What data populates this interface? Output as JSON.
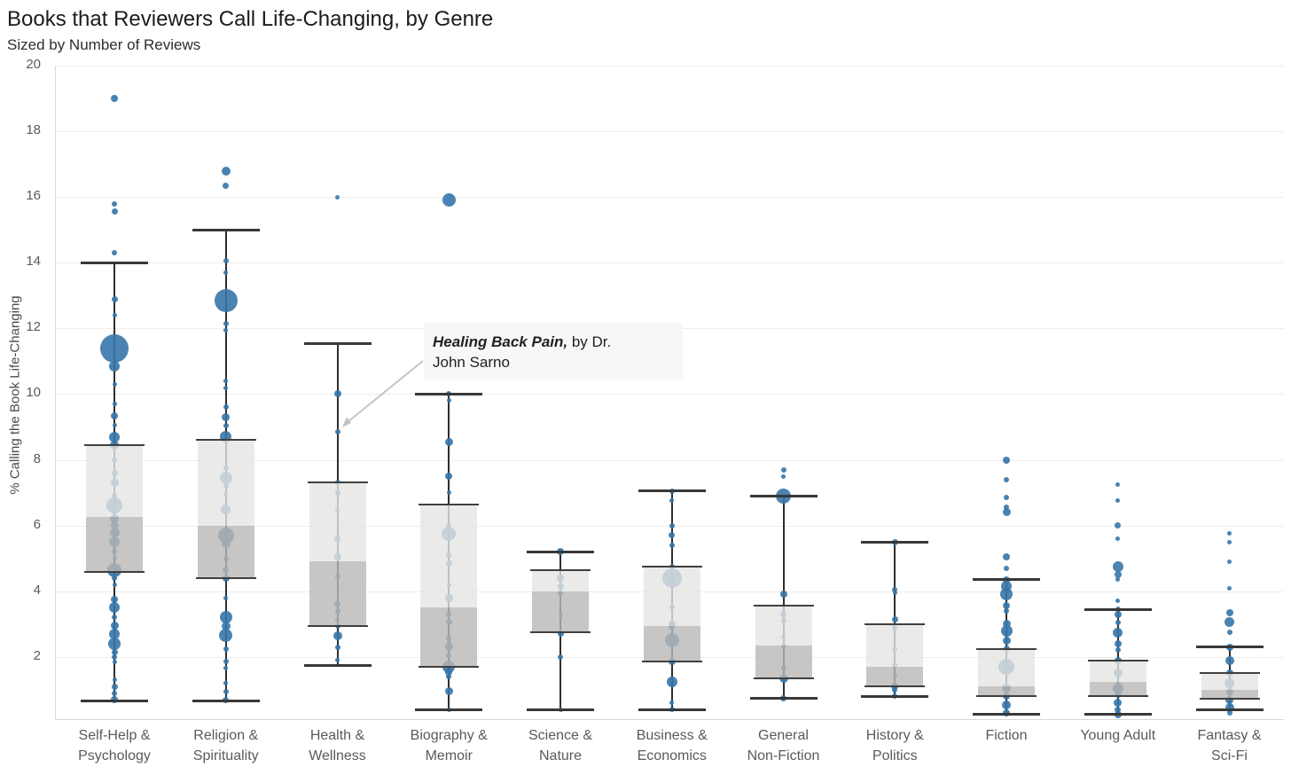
{
  "title": "Books that Reviewers Call Life-Changing, by Genre",
  "subtitle": "Sized by Number of Reviews",
  "y_axis": {
    "label": "% Calling the Book Life-Changing",
    "ticks": [
      2,
      4,
      6,
      8,
      10,
      12,
      14,
      16,
      18,
      20
    ]
  },
  "annotation": {
    "book_title": "Healing Back Pain,",
    "after_title": " by Dr.",
    "line2": "John Sarno"
  },
  "colors": {
    "dot": "rgba(54,117,169,0.9)",
    "box_upper": "rgba(229,229,228,0.8)",
    "box_lower": "rgba(185,184,183,0.8)",
    "box_edge": "#3f3f3f",
    "whisker": "#2e2e2e",
    "grid": "#ededed",
    "axis": "#d8d8d8",
    "arrow": "#c2c2c2"
  },
  "chart_data": {
    "type": "box-scatter",
    "title": "Books that Reviewers Call Life-Changing, by Genre",
    "subtitle": "Sized by Number of Reviews",
    "ylabel": "% Calling the Book Life-Changing",
    "ylim": [
      0,
      20
    ],
    "grid": true,
    "point_size_meaning": "number of reviews",
    "genres": [
      {
        "label": [
          "Self-Help &",
          "Psychology"
        ],
        "box": {
          "whisker_high": 14.0,
          "q3": 8.45,
          "median": 6.25,
          "q1": 4.6,
          "whisker_low": 0.65
        },
        "points": [
          [
            19.0,
            4
          ],
          [
            15.8,
            3
          ],
          [
            15.55,
            3.5
          ],
          [
            14.3,
            3
          ],
          [
            12.9,
            3.5
          ],
          [
            12.4,
            2.5
          ],
          [
            11.4,
            16
          ],
          [
            10.85,
            6
          ],
          [
            10.3,
            2.5
          ],
          [
            9.7,
            2.5
          ],
          [
            9.35,
            4
          ],
          [
            9.05,
            2.5
          ],
          [
            8.7,
            6
          ],
          [
            8.45,
            5
          ],
          [
            8.0,
            3
          ],
          [
            7.6,
            3.5
          ],
          [
            7.3,
            4.5
          ],
          [
            6.9,
            3
          ],
          [
            6.6,
            9
          ],
          [
            6.2,
            5
          ],
          [
            6.0,
            4.5
          ],
          [
            5.8,
            5.5
          ],
          [
            5.5,
            6
          ],
          [
            5.2,
            3
          ],
          [
            5.0,
            2.5
          ],
          [
            4.65,
            8
          ],
          [
            4.4,
            3
          ],
          [
            4.2,
            2.5
          ],
          [
            3.75,
            4
          ],
          [
            3.5,
            6
          ],
          [
            3.2,
            3
          ],
          [
            2.95,
            4.5
          ],
          [
            2.7,
            6
          ],
          [
            2.4,
            7
          ],
          [
            2.15,
            3.5
          ],
          [
            2.0,
            3
          ],
          [
            1.85,
            2.5
          ],
          [
            1.3,
            2.5
          ],
          [
            1.1,
            3.5
          ],
          [
            0.9,
            3
          ],
          [
            0.7,
            4
          ]
        ]
      },
      {
        "label": [
          "Religion &",
          "Spirituality"
        ],
        "box": {
          "whisker_high": 15.0,
          "q3": 8.6,
          "median": 6.0,
          "q1": 4.4,
          "whisker_low": 0.65
        },
        "points": [
          [
            16.8,
            5
          ],
          [
            16.35,
            3.5
          ],
          [
            14.05,
            3
          ],
          [
            13.7,
            2.5
          ],
          [
            12.85,
            13
          ],
          [
            12.15,
            3
          ],
          [
            11.95,
            2.5
          ],
          [
            10.4,
            2.5
          ],
          [
            10.2,
            2.5
          ],
          [
            9.6,
            3
          ],
          [
            9.3,
            4.5
          ],
          [
            9.05,
            3
          ],
          [
            8.7,
            6.5
          ],
          [
            7.75,
            3
          ],
          [
            7.45,
            7
          ],
          [
            7.2,
            3
          ],
          [
            6.95,
            2.5
          ],
          [
            6.5,
            5.5
          ],
          [
            5.7,
            9
          ],
          [
            5.45,
            5
          ],
          [
            5.0,
            3
          ],
          [
            4.65,
            3.5
          ],
          [
            4.4,
            4
          ],
          [
            3.8,
            2.5
          ],
          [
            3.2,
            7
          ],
          [
            2.95,
            5
          ],
          [
            2.65,
            7.5
          ],
          [
            2.25,
            3
          ],
          [
            1.85,
            3
          ],
          [
            1.65,
            2.5
          ],
          [
            1.2,
            2.5
          ],
          [
            0.95,
            3
          ],
          [
            0.7,
            3.5
          ]
        ]
      },
      {
        "label": [
          "Health &",
          "Wellness"
        ],
        "box": {
          "whisker_high": 11.55,
          "q3": 7.3,
          "median": 4.9,
          "q1": 2.95,
          "whisker_low": 1.75
        },
        "points": [
          [
            16.0,
            2.5
          ],
          [
            10.0,
            4
          ],
          [
            8.85,
            3
          ],
          [
            7.3,
            3
          ],
          [
            7.0,
            3
          ],
          [
            6.5,
            2.5
          ],
          [
            5.6,
            3.5
          ],
          [
            5.05,
            4
          ],
          [
            4.45,
            3
          ],
          [
            3.6,
            3.5
          ],
          [
            3.4,
            3
          ],
          [
            3.15,
            2.5
          ],
          [
            2.95,
            3
          ],
          [
            2.65,
            5
          ],
          [
            2.3,
            3
          ],
          [
            1.9,
            2.5
          ]
        ]
      },
      {
        "label": [
          "Biography &",
          "Memoir"
        ],
        "box": {
          "whisker_high": 10.0,
          "q3": 6.65,
          "median": 3.5,
          "q1": 1.7,
          "whisker_low": 0.4
        },
        "points": [
          [
            15.9,
            7.5
          ],
          [
            10.0,
            3
          ],
          [
            9.8,
            2.5
          ],
          [
            8.55,
            4.5
          ],
          [
            7.5,
            4
          ],
          [
            7.0,
            2.5
          ],
          [
            6.0,
            3
          ],
          [
            5.75,
            8
          ],
          [
            5.1,
            3
          ],
          [
            4.85,
            3.5
          ],
          [
            4.2,
            2.5
          ],
          [
            3.8,
            4.5
          ],
          [
            3.3,
            3
          ],
          [
            3.05,
            3.5
          ],
          [
            2.55,
            3
          ],
          [
            2.45,
            2.5
          ],
          [
            2.3,
            4.5
          ],
          [
            2.05,
            3
          ],
          [
            1.7,
            7
          ],
          [
            1.55,
            4
          ],
          [
            1.4,
            3
          ],
          [
            0.95,
            4.5
          ],
          [
            0.4,
            2.5
          ]
        ]
      },
      {
        "label": [
          "Science &",
          "Nature"
        ],
        "box": {
          "whisker_high": 5.2,
          "q3": 4.65,
          "median": 4.0,
          "q1": 2.75,
          "whisker_low": 0.4
        },
        "points": [
          [
            5.2,
            4
          ],
          [
            4.4,
            4
          ],
          [
            4.15,
            3.5
          ],
          [
            3.95,
            3
          ],
          [
            3.25,
            2.5
          ],
          [
            2.7,
            3.5
          ],
          [
            2.0,
            3
          ],
          [
            0.4,
            2.5
          ]
        ]
      },
      {
        "label": [
          "Business &",
          "Economics"
        ],
        "box": {
          "whisker_high": 7.05,
          "q3": 4.75,
          "median": 2.95,
          "q1": 1.85,
          "whisker_low": 0.4
        },
        "points": [
          [
            7.05,
            3
          ],
          [
            6.75,
            2.5
          ],
          [
            6.0,
            3
          ],
          [
            5.7,
            3.5
          ],
          [
            5.4,
            3
          ],
          [
            4.75,
            3
          ],
          [
            4.4,
            11
          ],
          [
            3.5,
            3
          ],
          [
            3.0,
            4
          ],
          [
            2.9,
            3.5
          ],
          [
            2.5,
            8
          ],
          [
            1.85,
            4
          ],
          [
            1.25,
            6
          ],
          [
            0.6,
            2.5
          ],
          [
            0.4,
            3
          ]
        ]
      },
      {
        "label": [
          "General",
          "Non-Fiction"
        ],
        "box": {
          "whisker_high": 6.9,
          "q3": 3.55,
          "median": 2.35,
          "q1": 1.35,
          "whisker_low": 0.75
        },
        "points": [
          [
            7.7,
            3
          ],
          [
            7.5,
            2.5
          ],
          [
            6.9,
            8.5
          ],
          [
            3.9,
            4
          ],
          [
            3.3,
            3.5
          ],
          [
            3.1,
            3
          ],
          [
            2.6,
            2.5
          ],
          [
            2.35,
            3
          ],
          [
            1.65,
            3
          ],
          [
            1.35,
            5
          ],
          [
            0.75,
            3.5
          ]
        ]
      },
      {
        "label": [
          "History &",
          "Politics"
        ],
        "box": {
          "whisker_high": 5.5,
          "q3": 3.0,
          "median": 1.7,
          "q1": 1.1,
          "whisker_low": 0.8
        },
        "points": [
          [
            5.5,
            3.5
          ],
          [
            4.05,
            3
          ],
          [
            3.95,
            2.5
          ],
          [
            3.15,
            3.5
          ],
          [
            2.9,
            3
          ],
          [
            2.25,
            3
          ],
          [
            1.75,
            3
          ],
          [
            1.45,
            2.5
          ],
          [
            1.1,
            4
          ],
          [
            1.0,
            3
          ],
          [
            0.8,
            3
          ]
        ]
      },
      {
        "label": [
          "Fiction"
        ],
        "box": {
          "whisker_high": 4.35,
          "q3": 2.25,
          "median": 1.1,
          "q1": 0.8,
          "whisker_low": 0.25
        },
        "points": [
          [
            8.0,
            4
          ],
          [
            7.4,
            3
          ],
          [
            6.85,
            3
          ],
          [
            6.55,
            3
          ],
          [
            6.4,
            4.5
          ],
          [
            5.05,
            4
          ],
          [
            4.7,
            3
          ],
          [
            4.35,
            4
          ],
          [
            4.15,
            6
          ],
          [
            3.9,
            7
          ],
          [
            3.55,
            4
          ],
          [
            3.4,
            3
          ],
          [
            3.0,
            4.5
          ],
          [
            2.8,
            6.5
          ],
          [
            2.5,
            4.5
          ],
          [
            2.25,
            3.5
          ],
          [
            1.7,
            9
          ],
          [
            1.05,
            5
          ],
          [
            0.8,
            4
          ],
          [
            0.55,
            5
          ],
          [
            0.3,
            4
          ]
        ]
      },
      {
        "label": [
          "Young Adult"
        ],
        "box": {
          "whisker_high": 3.45,
          "q3": 1.9,
          "median": 1.25,
          "q1": 0.8,
          "whisker_low": 0.25
        },
        "points": [
          [
            7.25,
            2.5
          ],
          [
            6.75,
            2.5
          ],
          [
            6.0,
            3.5
          ],
          [
            5.6,
            2.5
          ],
          [
            4.75,
            6
          ],
          [
            4.5,
            4
          ],
          [
            4.35,
            2.5
          ],
          [
            3.7,
            2.5
          ],
          [
            3.45,
            3
          ],
          [
            3.3,
            4
          ],
          [
            3.05,
            3
          ],
          [
            2.75,
            5.5
          ],
          [
            2.4,
            4
          ],
          [
            2.2,
            3
          ],
          [
            1.9,
            4
          ],
          [
            1.5,
            5
          ],
          [
            1.05,
            6
          ],
          [
            0.85,
            4
          ],
          [
            0.6,
            4.5
          ],
          [
            0.4,
            3.5
          ],
          [
            0.25,
            4
          ]
        ]
      },
      {
        "label": [
          "Fantasy &",
          "Sci-Fi"
        ],
        "box": {
          "whisker_high": 2.3,
          "q3": 1.5,
          "median": 1.0,
          "q1": 0.72,
          "whisker_low": 0.4
        },
        "points": [
          [
            5.75,
            2.5
          ],
          [
            5.5,
            2.5
          ],
          [
            4.9,
            2.5
          ],
          [
            4.1,
            2.5
          ],
          [
            3.35,
            4
          ],
          [
            3.05,
            5.5
          ],
          [
            2.75,
            3
          ],
          [
            2.3,
            4
          ],
          [
            1.9,
            5
          ],
          [
            1.5,
            4
          ],
          [
            1.2,
            5.5
          ],
          [
            0.95,
            4
          ],
          [
            0.7,
            4.5
          ],
          [
            0.45,
            5
          ],
          [
            0.3,
            3
          ]
        ]
      }
    ],
    "annotation": {
      "text": "Healing Back Pain, by Dr. John Sarno",
      "genre": "Health & Wellness",
      "value": 8.85
    }
  }
}
